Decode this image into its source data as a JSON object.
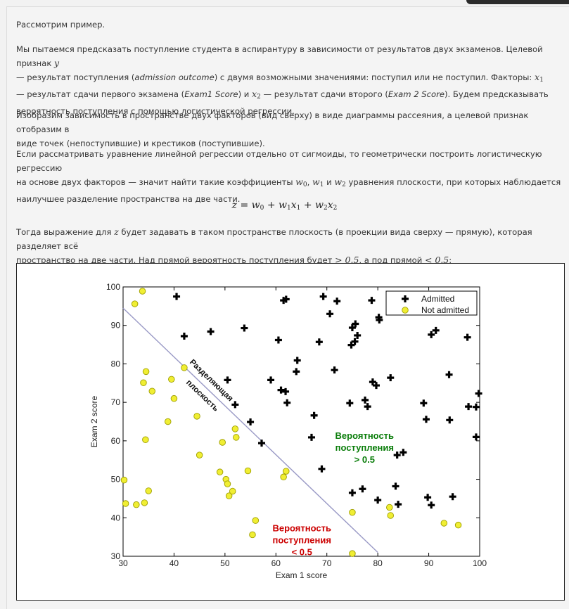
{
  "p1": "Рассмотрим пример.",
  "p2": {
    "a": "Мы пытаемся предсказать поступление студента в аспирантуру в зависимости от результатов двух экзаменов. Целевой признак ",
    "y": "y",
    "b": "— результат поступления (",
    "c": "admission outcome",
    "d": ") с двумя возможными значениями: поступил или не поступил. Факторы: ",
    "x1": "x",
    "x1s": "1",
    "e": "— результат сдачи первого экзамена (",
    "f": "Exam1 Score",
    "g": ") и ",
    "x2": "x",
    "x2s": "2",
    "h": " — результат сдачи второго (",
    "k": "Exam 2 Score",
    "l": "). Будем предсказывать",
    "m": "вероятность поступления с помощью логистической регрессии."
  },
  "p3": {
    "a": "Изобразим зависимость в пространстве двух факторов (вид сверху) в виде диаграммы рассеяния, а целевой признак отобразим в",
    "b": "виде точек (непоступившие) и крестиков (поступившие)."
  },
  "p4": {
    "a": "Если рассматривать уравнение линейной регрессии отдельно от сигмоиды, то геометрически построить логистическую регрессию",
    "b": "на основе двух факторов — значит найти такие коэффициенты ",
    "w0": "w",
    "w0s": "0",
    "w1": "w",
    "w1s": "1",
    "and": " и ",
    "w2": "w",
    "w2s": "2",
    "c": " уравнения плоскости, при которых наблюдается",
    "d": "наилучшее разделение пространства на две части."
  },
  "equation": {
    "lhs": "z",
    "eq": " = ",
    "w0": "w",
    "s0": "0",
    "plus1": " + ",
    "w1": "w",
    "s1": "1",
    "x1": "x",
    "sx1": "1",
    "plus2": " + ",
    "w2": "w",
    "s2": "2",
    "x2": "x",
    "sx2": "2"
  },
  "p5": {
    "a": "Тогда выражение для ",
    "z": "z",
    "b": " будет задавать в таком пространстве плоскость (в проекции вида сверху — прямую), которая разделяет всё",
    "c": "пространство на две части. Над прямой вероятность поступления будет ",
    "gt": "> 0.5",
    "d": ", а под прямой ",
    "lt": "< 0.5",
    "e": ":"
  },
  "chart_data": {
    "type": "scatter",
    "xlabel": "Exam 1 score",
    "ylabel": "Exam 2 score",
    "xlim": [
      30,
      100
    ],
    "ylim": [
      30,
      100
    ],
    "xticks": [
      30,
      40,
      50,
      60,
      70,
      80,
      90,
      100
    ],
    "yticks": [
      30,
      40,
      50,
      60,
      70,
      80,
      90,
      100
    ],
    "legend_position": "top-right",
    "boundary": {
      "label": "Разделяющая плоскость",
      "x": [
        30,
        80
      ],
      "y": [
        94.5,
        31
      ]
    },
    "annotation_above": {
      "lines": [
        "Вероятность",
        "поступления",
        "> 0.5"
      ],
      "color": "#0a7d0a"
    },
    "annotation_below": {
      "lines": [
        "Вероятность",
        "поступления",
        "< 0.5"
      ],
      "color": "#cc0000"
    },
    "series": [
      {
        "name": "Admitted",
        "marker": "plus",
        "color": "#000000",
        "points": [
          [
            40.5,
            97.5
          ],
          [
            42,
            87.2
          ],
          [
            47.2,
            88.4
          ],
          [
            50.5,
            75.8
          ],
          [
            52,
            69.4
          ],
          [
            53.8,
            89.3
          ],
          [
            55,
            64.9
          ],
          [
            57.2,
            59.4
          ],
          [
            59,
            75.8
          ],
          [
            60.5,
            86.2
          ],
          [
            61,
            73.2
          ],
          [
            61.5,
            96.5
          ],
          [
            61.9,
            72.8
          ],
          [
            62,
            96.8
          ],
          [
            62.2,
            69.9
          ],
          [
            64,
            78
          ],
          [
            64.2,
            80.9
          ],
          [
            67,
            60.9
          ],
          [
            67.5,
            66.6
          ],
          [
            68.5,
            85.7
          ],
          [
            69,
            52.7
          ],
          [
            69.3,
            97.5
          ],
          [
            70.6,
            93
          ],
          [
            71.5,
            78.4
          ],
          [
            72,
            96.3
          ],
          [
            74.5,
            69.8
          ],
          [
            74.8,
            84.9
          ],
          [
            75,
            89.4
          ],
          [
            75,
            46.5
          ],
          [
            75.5,
            85.8
          ],
          [
            75.6,
            90.4
          ],
          [
            76,
            87.4
          ],
          [
            77,
            47.5
          ],
          [
            77.5,
            70.6
          ],
          [
            78,
            68.9
          ],
          [
            78.8,
            96.5
          ],
          [
            79,
            75.3
          ],
          [
            79.7,
            74.4
          ],
          [
            80,
            44.6
          ],
          [
            80.2,
            92.1
          ],
          [
            80.3,
            91.4
          ],
          [
            82.5,
            76.4
          ],
          [
            83.5,
            48.2
          ],
          [
            83.8,
            56.3
          ],
          [
            84,
            43.5
          ],
          [
            85,
            57
          ],
          [
            89,
            69.8
          ],
          [
            89.5,
            65.6
          ],
          [
            89.8,
            45.3
          ],
          [
            90.5,
            43.3
          ],
          [
            90.5,
            87.6
          ],
          [
            91.4,
            88.7
          ],
          [
            94,
            77.2
          ],
          [
            94.1,
            65.4
          ],
          [
            94.7,
            45.5
          ],
          [
            97.6,
            86.9
          ],
          [
            97.8,
            68.9
          ],
          [
            99.3,
            68.8
          ],
          [
            99.3,
            61
          ],
          [
            99.8,
            72.3
          ]
        ]
      },
      {
        "name": "Not admitted",
        "marker": "circle",
        "color": "#f0ee33",
        "points": [
          [
            30.2,
            49.8
          ],
          [
            30.5,
            43.7
          ],
          [
            32.3,
            95.6
          ],
          [
            32.6,
            43.4
          ],
          [
            33.8,
            98.9
          ],
          [
            34,
            75.1
          ],
          [
            34.2,
            43.9
          ],
          [
            34.4,
            60.3
          ],
          [
            34.5,
            78
          ],
          [
            35,
            47
          ],
          [
            35.7,
            72.9
          ],
          [
            38.8,
            65
          ],
          [
            39.5,
            76
          ],
          [
            40,
            71
          ],
          [
            42,
            79
          ],
          [
            44.5,
            66.4
          ],
          [
            45,
            56.3
          ],
          [
            49,
            51.9
          ],
          [
            49.5,
            59.6
          ],
          [
            50.2,
            50
          ],
          [
            50.5,
            48.8
          ],
          [
            50.8,
            45.7
          ],
          [
            51.5,
            46.9
          ],
          [
            52,
            63.1
          ],
          [
            52.2,
            60.9
          ],
          [
            54.5,
            52.2
          ],
          [
            55.4,
            35.6
          ],
          [
            56,
            39.3
          ],
          [
            61.5,
            50.6
          ],
          [
            62,
            52.1
          ],
          [
            75,
            41.4
          ],
          [
            75,
            30.7
          ],
          [
            82.3,
            42.7
          ],
          [
            82.5,
            40.6
          ],
          [
            93,
            38.6
          ],
          [
            95.8,
            38.1
          ]
        ]
      }
    ]
  }
}
